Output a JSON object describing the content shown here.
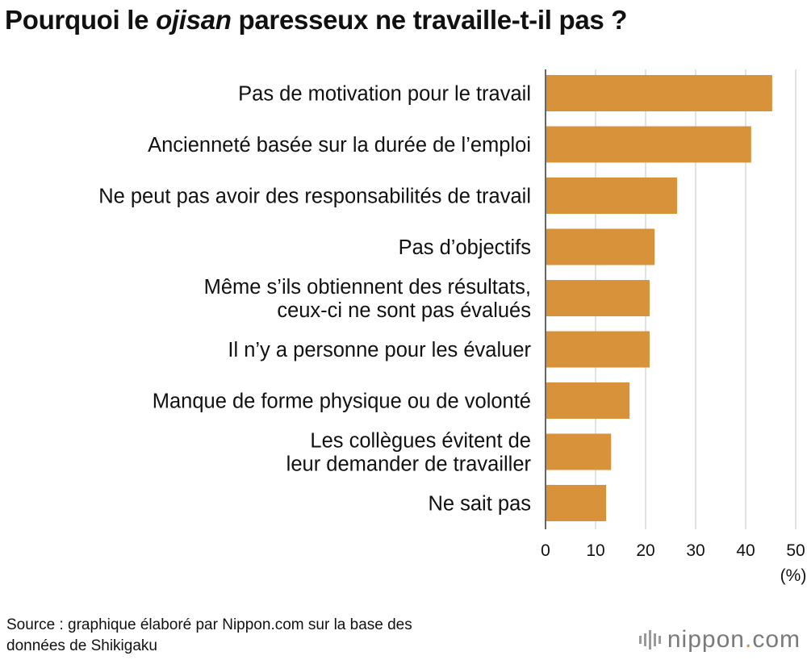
{
  "title": {
    "prefix": "Pourquoi le ",
    "emphasis": "ojisan",
    "suffix": " paresseux ne travaille-t-il pas ?"
  },
  "chart_data": {
    "type": "bar",
    "orientation": "horizontal",
    "categories": [
      [
        "Pas de motivation pour le travail"
      ],
      [
        "Ancienneté basée sur la durée de l’emploi"
      ],
      [
        "Ne peut pas avoir des responsabilités de travail"
      ],
      [
        "Pas d’objectifs"
      ],
      [
        "Même s’ils obtiennent des résultats,",
        "ceux-ci ne sont pas évalués"
      ],
      [
        "Il n’y a personne pour les évaluer"
      ],
      [
        "Manque de forme physique ou de volonté"
      ],
      [
        "Les collègues évitent de",
        "leur demander de travailler"
      ],
      [
        "Ne sait pas"
      ]
    ],
    "values": [
      45.3,
      41.1,
      26.3,
      21.8,
      20.8,
      20.8,
      16.8,
      13.1,
      12.1
    ],
    "xlim": [
      0,
      50
    ],
    "xticks": [
      "0",
      "10",
      "20",
      "30",
      "40",
      "50"
    ],
    "unit_label": "(%)",
    "bar_color": "#d8923a",
    "grid_color": "#cfcfcf",
    "grid": true
  },
  "footer": {
    "source_line1": "Source : graphique élaboré par Nippon.com sur la base des",
    "source_line2": "données de Shikigaku"
  },
  "logo": {
    "name": "nippon",
    "dot": ".",
    "tld": "com"
  }
}
